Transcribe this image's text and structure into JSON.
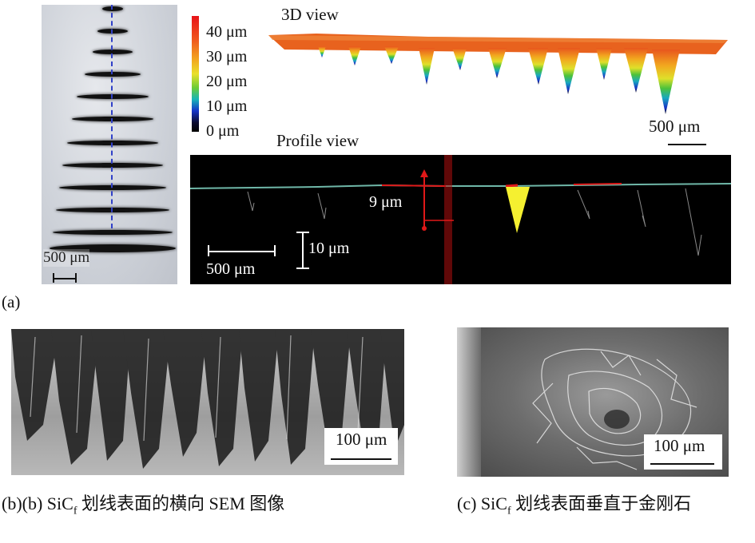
{
  "panel_a": {
    "label": "(a)",
    "optical_scale": "500 μm",
    "colorbar_ticks": [
      "40 μm",
      "30 μm",
      "20 μm",
      "10 μm",
      "0 μm"
    ],
    "view3d_title": "3D view",
    "view3d_scale": "500 μm",
    "profile_title": "Profile view",
    "profile_depth": "9 μm",
    "profile_scale_h": "500 μm",
    "profile_scale_v": "10 μm"
  },
  "panel_b": {
    "scale": "100 μm",
    "caption_prefix": "(b)",
    "caption_label": "(b) SiC",
    "caption_sub": "f",
    "caption_text": " 划线表面的横向 SEM 图像"
  },
  "panel_c": {
    "scale": "100 μm",
    "caption_label": "(c) SiC",
    "caption_sub": "f",
    "caption_text": " 划线表面垂直于金刚石"
  }
}
